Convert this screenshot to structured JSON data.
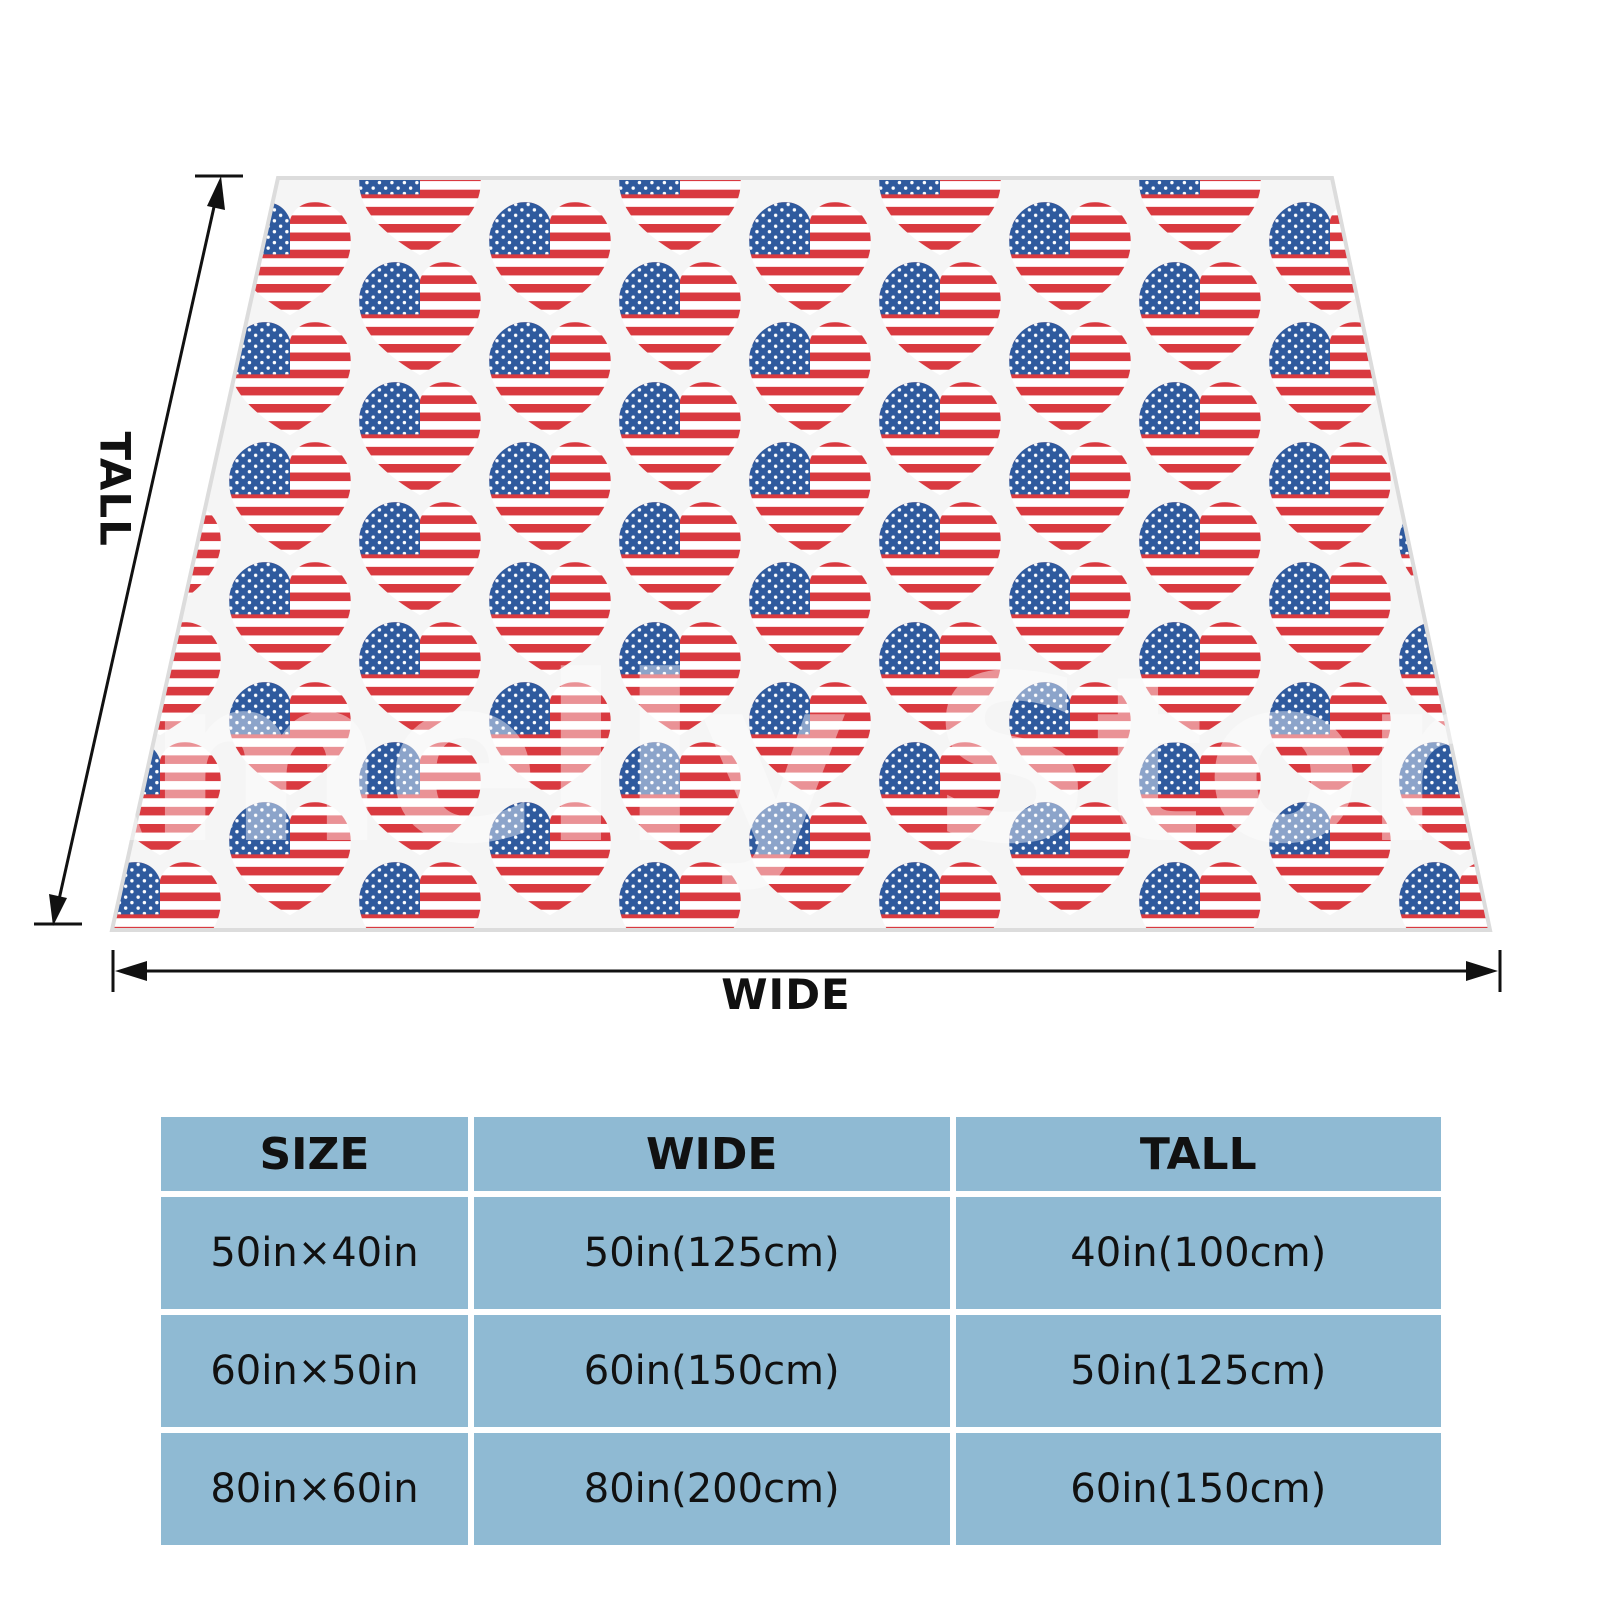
{
  "dimensions": {
    "wide_label": "WIDE",
    "tall_label": "TALL"
  },
  "blanket": {
    "pattern": "heart-shaped american flag",
    "colors": {
      "blue": "#2f5a9e",
      "red": "#d93a40",
      "white": "#ffffff",
      "background": "#f5f5f5"
    },
    "watermark": "Amelly Store"
  },
  "size_table": {
    "headers": [
      "SIZE",
      "WIDE",
      "TALL"
    ],
    "header_color": "#8fbad3",
    "rows": [
      [
        "50in×40in",
        "50in(125cm)",
        "40in(100cm)"
      ],
      [
        "60in×50in",
        "60in(150cm)",
        "50in(125cm)"
      ],
      [
        "80in×60in",
        "80in(200cm)",
        "60in(150cm)"
      ]
    ]
  }
}
